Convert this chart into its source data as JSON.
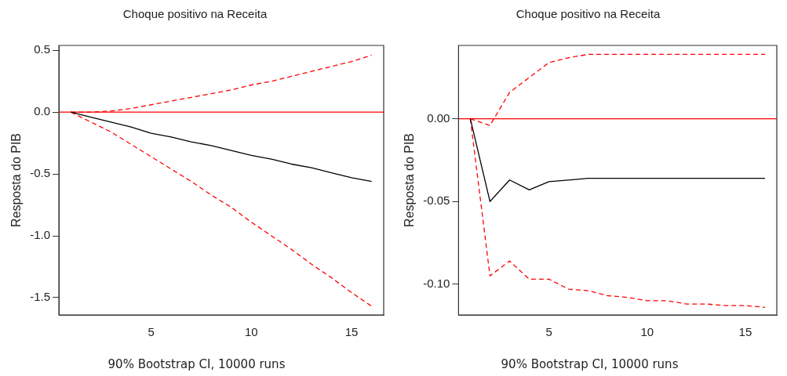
{
  "chart_data": [
    {
      "type": "line",
      "title": "Choque positivo na Receita",
      "ylabel": "Resposta do PIB",
      "x": [
        1,
        2,
        3,
        4,
        5,
        6,
        7,
        8,
        9,
        10,
        11,
        12,
        13,
        14,
        15,
        16
      ],
      "series": [
        {
          "color": "#000000",
          "line_style": "solid",
          "values": [
            0,
            -0.04,
            -0.08,
            -0.12,
            -0.17,
            -0.2,
            -0.24,
            -0.27,
            -0.31,
            -0.35,
            -0.38,
            -0.42,
            -0.45,
            -0.49,
            -0.53,
            -0.56
          ]
        },
        {
          "color": "#ff0000",
          "line_style": "dashed",
          "values": [
            0,
            0,
            0.01,
            0.03,
            0.06,
            0.09,
            0.12,
            0.15,
            0.18,
            0.22,
            0.25,
            0.29,
            0.33,
            0.37,
            0.41,
            0.46
          ]
        },
        {
          "color": "#ff0000",
          "line_style": "dashed",
          "values": [
            0,
            -0.08,
            -0.16,
            -0.26,
            -0.36,
            -0.46,
            -0.56,
            -0.67,
            -0.77,
            -0.89,
            -1.0,
            -1.11,
            -1.23,
            -1.34,
            -1.46,
            -1.57
          ]
        }
      ],
      "xlim": [
        0.4,
        16.6
      ],
      "xticks": [
        5,
        10,
        15
      ],
      "ylim": [
        -1.64,
        0.54
      ],
      "yticks": [
        {
          "value": -1.5,
          "label": "-1.5"
        },
        {
          "value": -1,
          "label": "-1.0"
        },
        {
          "value": -0.5,
          "label": "-0.5"
        },
        {
          "value": 0,
          "label": "0.0"
        },
        {
          "value": 0.5,
          "label": "0.5"
        }
      ],
      "ref_lines": [
        {
          "axis": "y",
          "value": 0,
          "color": "#ff0000"
        }
      ],
      "grid": false,
      "legend": false,
      "marker": "none",
      "annotations": [
        "90% Bootstrap CI, 10000 runs"
      ]
    },
    {
      "type": "line",
      "title": "Choque positivo na Receita",
      "ylabel": "Resposta do PIB",
      "x": [
        1,
        2,
        3,
        4,
        5,
        6,
        7,
        8,
        9,
        10,
        11,
        12,
        13,
        14,
        15,
        16
      ],
      "series": [
        {
          "color": "#000000",
          "line_style": "solid",
          "values": [
            0,
            -0.05,
            -0.037,
            -0.043,
            -0.038,
            -0.037,
            -0.036,
            -0.036,
            -0.036,
            -0.036,
            -0.036,
            -0.036,
            -0.036,
            -0.036,
            -0.036,
            -0.036
          ]
        },
        {
          "color": "#ff0000",
          "line_style": "dashed",
          "values": [
            0,
            -0.004,
            0.016,
            0.025,
            0.034,
            0.037,
            0.039,
            0.039,
            0.039,
            0.039,
            0.039,
            0.039,
            0.039,
            0.039,
            0.039,
            0.039
          ]
        },
        {
          "color": "#ff0000",
          "line_style": "dashed",
          "values": [
            0,
            -0.095,
            -0.086,
            -0.097,
            -0.097,
            -0.103,
            -0.104,
            -0.107,
            -0.108,
            -0.11,
            -0.11,
            -0.112,
            -0.112,
            -0.113,
            -0.113,
            -0.114
          ]
        }
      ],
      "xlim": [
        0.4,
        16.6
      ],
      "xticks": [
        5,
        10,
        15
      ],
      "ylim": [
        -0.1186,
        0.0444
      ],
      "yticks": [
        {
          "value": -0.1,
          "label": "-0.10"
        },
        {
          "value": -0.05,
          "label": "-0.05"
        },
        {
          "value": 0,
          "label": "0.00"
        }
      ],
      "ref_lines": [
        {
          "axis": "y",
          "value": 0,
          "color": "#ff0000"
        }
      ],
      "grid": false,
      "legend": false,
      "marker": "none",
      "annotations": [
        "90% Bootstrap CI, 10000 runs"
      ]
    }
  ]
}
